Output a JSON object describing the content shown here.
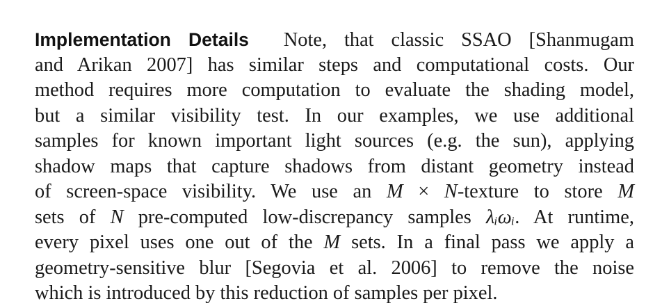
{
  "paragraph": {
    "heading": "Implementation Details",
    "line1_text": "Note, that classic SSAO [Shanmugam",
    "line2": "and Arikan 2007] has similar steps and computational costs. Our",
    "line3": "method requires more computation to evaluate the shading model,",
    "line4": "but a similar visibility test. In our examples, we use additional",
    "line5": "samples for known important light sources (e.g. the sun), applying",
    "line6": "shadow maps that capture shadows from distant geometry instead",
    "line7_a": "of screen-space visibility. We use an",
    "line7_m": "M",
    "line7_times": "×",
    "line7_n": "N",
    "line7_b": "-texture to store",
    "line7_m2": "M",
    "line8_a": "sets of",
    "line8_n": "N",
    "line8_b": "pre-computed low-discrepancy samples",
    "line8_math": "λᵢωᵢ",
    "line8_c": ". At runtime,",
    "line9_a": "every pixel uses one out of the",
    "line9_m": "M",
    "line9_b": "sets. In a final pass we apply a",
    "line10": "geometry-sensitive blur [Segovia et al. 2006] to remove the noise",
    "line11": "which is introduced by this reduction of samples per pixel."
  }
}
